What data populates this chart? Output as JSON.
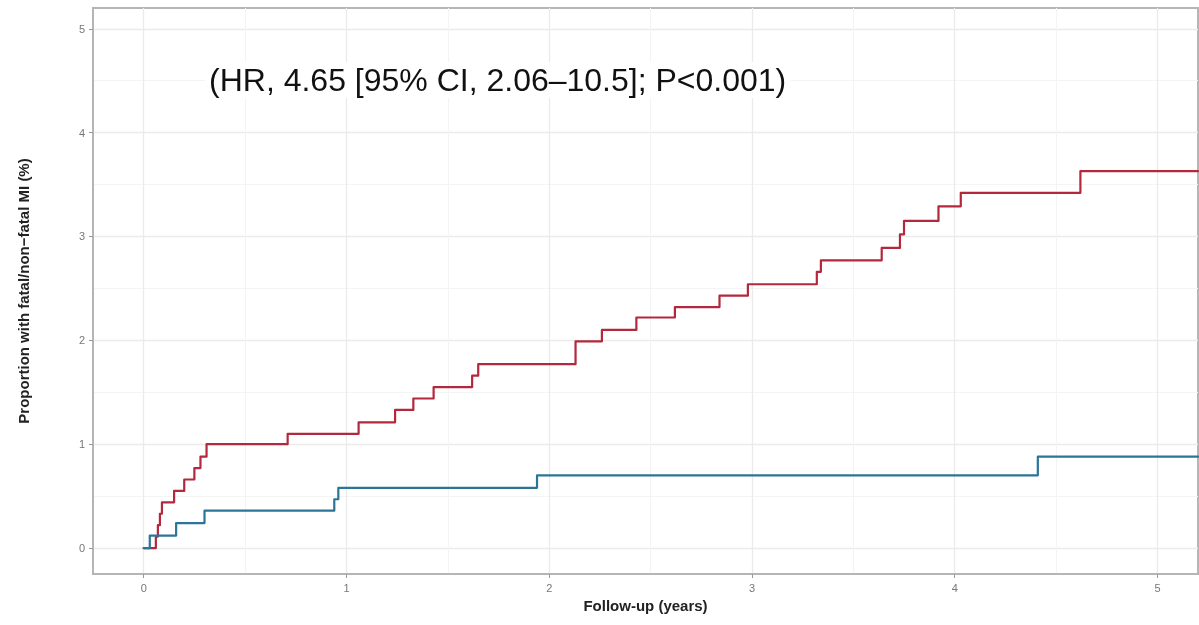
{
  "chart_data": {
    "type": "step",
    "xlabel": "Follow-up (years)",
    "ylabel": "Proportion with fatal/non−fatal MI (%)",
    "annotations": [
      "(HR, 4.65 [95% CI, 2.06–10.5]; P<0.001)"
    ],
    "series": [
      {
        "color": "#b3283c",
        "x": [
          0,
          0.06,
          0.07,
          0.08,
          0.09,
          0.15,
          0.2,
          0.25,
          0.28,
          0.31,
          0.71,
          1.06,
          1.24,
          1.33,
          1.43,
          1.62,
          1.65,
          2.13,
          2.26,
          2.43,
          2.62,
          2.84,
          2.98,
          3.32,
          3.34,
          3.64,
          3.73,
          3.75,
          3.92,
          4.03,
          4.62,
          5.2
        ],
        "values": [
          0,
          0.11,
          0.22,
          0.33,
          0.44,
          0.55,
          0.66,
          0.77,
          0.88,
          1.0,
          1.1,
          1.21,
          1.33,
          1.44,
          1.55,
          1.66,
          1.77,
          1.99,
          2.1,
          2.22,
          2.32,
          2.43,
          2.54,
          2.66,
          2.77,
          2.89,
          3.02,
          3.15,
          3.29,
          3.42,
          3.63,
          3.63
        ]
      },
      {
        "color": "#2c7596",
        "x": [
          0,
          0.03,
          0.16,
          0.3,
          0.94,
          0.96,
          1.94,
          4.41,
          5.2
        ],
        "values": [
          0,
          0.12,
          0.24,
          0.36,
          0.47,
          0.58,
          0.7,
          0.88,
          0.88
        ]
      }
    ],
    "xlim": [
      -0.25,
      5.2
    ],
    "ylim": [
      -0.25,
      5.2
    ],
    "xticks": [
      0,
      1,
      2,
      3,
      4,
      5
    ],
    "yticks": [
      0,
      1,
      2,
      3,
      4,
      5
    ],
    "grid": true,
    "marker": "none",
    "line_style": "solid"
  }
}
